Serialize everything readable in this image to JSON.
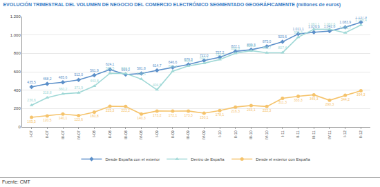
{
  "chart_data": {
    "type": "line",
    "title": "EVOLUCIÓN TRIMESTRAL DEL VOLUMEN DE NEGOCIO DEL COMERCIO ELECTRÓNICO SEGMENTADO GEOGRÁFICAMENTE (millones de euros)",
    "annotations": [
      "Fuente: CMT"
    ],
    "categories": [
      "I-07",
      "II-07",
      "III-07",
      "IV-07",
      "I-08",
      "II-08",
      "III-08",
      "IV-08",
      "I-09",
      "II-09",
      "III-09",
      "IV-09",
      "I-10",
      "II-10",
      "III-10",
      "IV-10",
      "I-11",
      "II-11",
      "III-11",
      "IV-11",
      "I-12",
      "II-12"
    ],
    "series": [
      {
        "name": "Desde España con el exterior",
        "color": "#5b8fc9",
        "marker": "diamond",
        "values": [
          435.5,
          468.2,
          485.6,
          512.0,
          561.9,
          624.1,
          569.2,
          581.8,
          614.7,
          646.6,
          679.3,
          722.0,
          757.2,
          822.1,
          839.3,
          875.0,
          925.6,
          1011.1,
          1029.9,
          1042.6,
          1083.9,
          1137.9
        ],
        "value_labels": [
          "435,5",
          "468,2",
          "485,6",
          "512,0",
          "561,9",
          "624,1",
          "569,2",
          "581,8",
          "614,7",
          "646,6",
          "679,3",
          "722,0",
          "757,2",
          "822,1",
          "839,3",
          "875,0",
          "925,6",
          "1.011,1",
          "1.029,9",
          "1.042,6",
          "1.083,9",
          "1.137,9"
        ]
      },
      {
        "name": "Dentro de España",
        "color": "#9fd8d6",
        "marker": "triangle-up",
        "values": [
          236.6,
          318.8,
          360.2,
          371.9,
          443.8,
          583.5,
          580.7,
          520.5,
          404.5,
          606.4,
          663.6,
          692.7,
          733.3,
          800.9,
          829.3,
          805.7,
          807.4,
          975.8,
          1061.1,
          1062.6,
          1023.7,
          1108.4
        ],
        "value_labels": [
          "236,6",
          "318,8",
          "360,2",
          "371,9",
          "443,8",
          "583,5",
          "580,7",
          "520,5",
          "404,5",
          "606,4",
          "663,6",
          "692,7",
          "733,3",
          "800,9",
          "829,3",
          "805,7",
          "807,4",
          "975,8",
          "1.061,1",
          "1.062,6",
          "1.023,7",
          "1.108,4"
        ]
      },
      {
        "name": "Desde el exterior con España",
        "color": "#f5c36b",
        "marker": "circle",
        "values": [
          105.5,
          120.5,
          140.1,
          123.6,
          160.8,
          225.3,
          222.2,
          140.3,
          173.2,
          172.1,
          173.3,
          150.1,
          178.1,
          216.3,
          233.1,
          222.3,
          311.3,
          333.3,
          349.3,
          290.3,
          344.2,
          394.3
        ],
        "value_labels": [
          "105,5",
          "120,5",
          "140,1",
          "123,6",
          "160,8",
          "225,3",
          "222,2",
          "140,3",
          "173,2",
          "172,1",
          "173,3",
          "150,1",
          "178,1",
          "216,3",
          "233,1",
          "222,3",
          "311,3",
          "333,3",
          "349,3",
          "290,3",
          "344,2",
          "394,3"
        ]
      }
    ],
    "ylim": [
      0,
      1200
    ],
    "yticks": [
      0,
      200,
      400,
      600,
      800,
      {
        "value": 1000,
        "label": "1.000"
      },
      {
        "value": 1200,
        "label": "1.200"
      }
    ],
    "grid": true,
    "legend": "bottom",
    "data_labels": true
  }
}
